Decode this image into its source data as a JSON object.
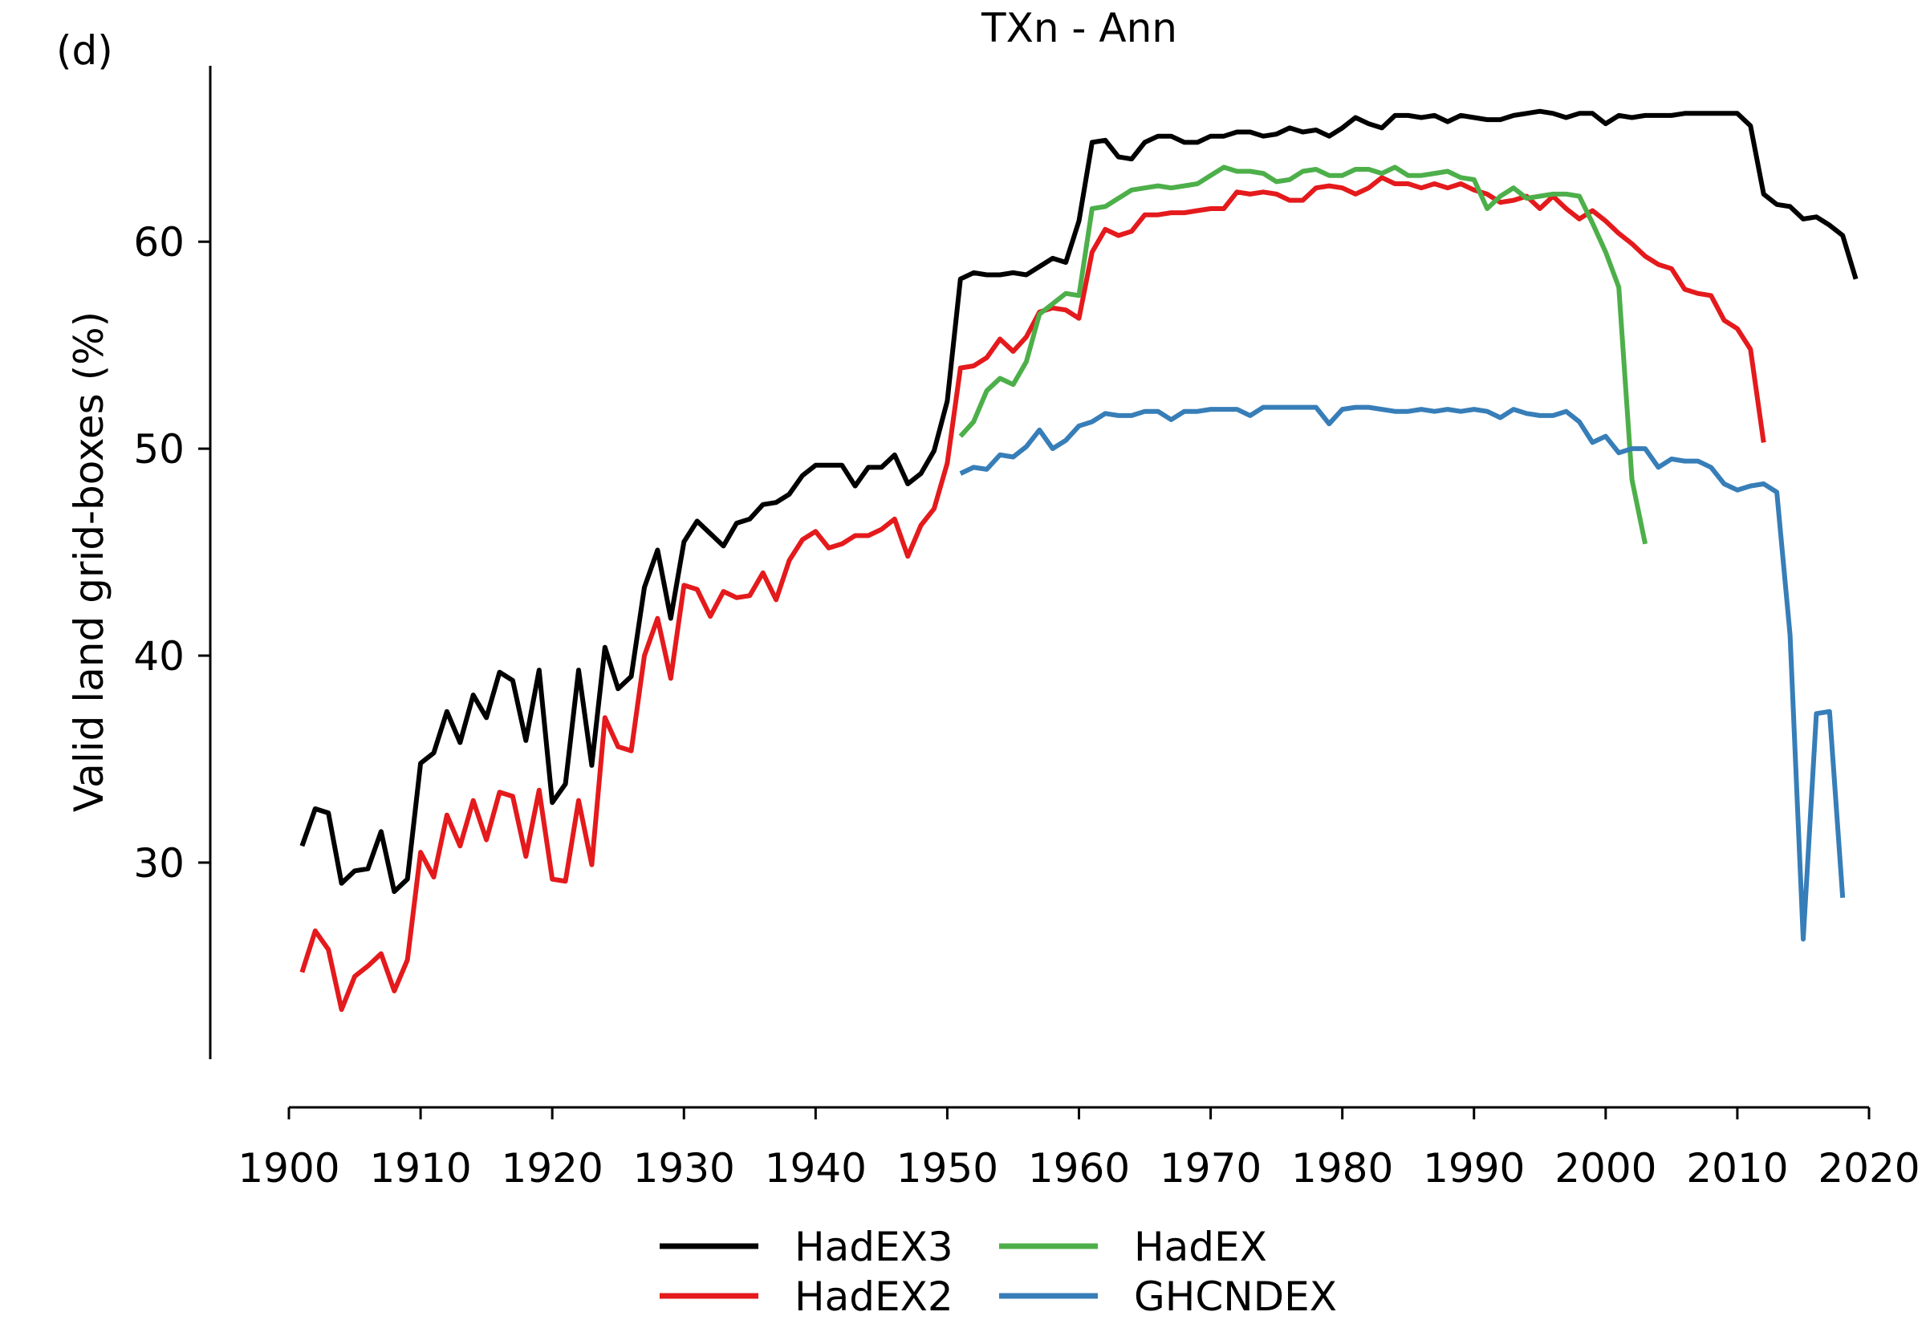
{
  "panel_label": "(d)",
  "chart_data": {
    "type": "line",
    "title": "TXn - Ann",
    "xlabel": "",
    "ylabel": "Valid land grid-boxes (%)",
    "xlim": [
      1900,
      2020
    ],
    "ylim": [
      20.5,
      68.5
    ],
    "xticks": [
      1900,
      1910,
      1920,
      1930,
      1940,
      1950,
      1960,
      1970,
      1980,
      1990,
      2000,
      2010,
      2020
    ],
    "yticks": [
      30,
      40,
      50,
      60
    ],
    "grid": false,
    "legend_position": "bottom-center",
    "series": [
      {
        "name": "HadEX3",
        "color": "#000000",
        "x_start": 1901,
        "values": [
          30.8,
          32.6,
          32.4,
          29.0,
          29.6,
          29.7,
          31.5,
          28.6,
          29.2,
          34.8,
          35.3,
          37.3,
          35.8,
          38.1,
          37.0,
          39.2,
          38.8,
          35.9,
          39.3,
          32.9,
          33.8,
          39.3,
          34.7,
          40.4,
          38.4,
          39.0,
          43.3,
          45.1,
          41.8,
          45.5,
          46.5,
          45.9,
          45.3,
          46.4,
          46.6,
          47.3,
          47.4,
          47.8,
          48.7,
          49.2,
          49.2,
          49.2,
          48.2,
          49.1,
          49.1,
          49.7,
          48.3,
          48.8,
          49.9,
          52.3,
          58.2,
          58.5,
          58.4,
          58.4,
          58.5,
          58.4,
          58.8,
          59.2,
          59.0,
          61.0,
          64.8,
          64.9,
          64.1,
          64.0,
          64.8,
          65.1,
          65.1,
          64.8,
          64.8,
          65.1,
          65.1,
          65.3,
          65.3,
          65.1,
          65.2,
          65.5,
          65.3,
          65.4,
          65.1,
          65.5,
          66.0,
          65.7,
          65.5,
          66.1,
          66.1,
          66.0,
          66.1,
          65.8,
          66.1,
          66.0,
          65.9,
          65.9,
          66.1,
          66.2,
          66.3,
          66.2,
          66.0,
          66.2,
          66.2,
          65.7,
          66.1,
          66.0,
          66.1,
          66.1,
          66.1,
          66.2,
          66.2,
          66.2,
          66.2,
          66.2,
          65.6,
          62.3,
          61.8,
          61.7,
          61.1,
          61.2,
          60.8,
          60.3,
          58.2
        ]
      },
      {
        "name": "HadEX2",
        "color": "#e41a1c",
        "x_start": 1901,
        "values": [
          24.7,
          26.7,
          25.8,
          22.9,
          24.5,
          25.0,
          25.6,
          23.8,
          25.3,
          30.5,
          29.3,
          32.3,
          30.8,
          33.0,
          31.1,
          33.4,
          33.2,
          30.3,
          33.5,
          29.2,
          29.1,
          33.0,
          29.9,
          37.0,
          35.6,
          35.4,
          40.0,
          41.8,
          38.9,
          43.4,
          43.2,
          41.9,
          43.1,
          42.8,
          42.9,
          44.0,
          42.7,
          44.6,
          45.6,
          46.0,
          45.2,
          45.4,
          45.8,
          45.8,
          46.1,
          46.6,
          44.8,
          46.3,
          47.1,
          49.3,
          53.9,
          54.0,
          54.4,
          55.3,
          54.7,
          55.4,
          56.6,
          56.8,
          56.7,
          56.3,
          59.5,
          60.6,
          60.3,
          60.5,
          61.3,
          61.3,
          61.4,
          61.4,
          61.5,
          61.6,
          61.6,
          62.4,
          62.3,
          62.4,
          62.3,
          62.0,
          62.0,
          62.6,
          62.7,
          62.6,
          62.3,
          62.6,
          63.1,
          62.8,
          62.8,
          62.6,
          62.8,
          62.6,
          62.8,
          62.5,
          62.3,
          61.9,
          62.0,
          62.2,
          61.6,
          62.2,
          61.6,
          61.1,
          61.5,
          61.0,
          60.4,
          59.9,
          59.3,
          58.9,
          58.7,
          57.7,
          57.5,
          57.4,
          56.2,
          55.8,
          54.8,
          50.3
        ]
      },
      {
        "name": "HadEX",
        "color": "#4daf4a",
        "x_start": 1951,
        "values": [
          50.6,
          51.3,
          52.8,
          53.4,
          53.1,
          54.2,
          56.5,
          57.0,
          57.5,
          57.4,
          61.6,
          61.7,
          62.1,
          62.5,
          62.6,
          62.7,
          62.6,
          62.7,
          62.8,
          63.2,
          63.6,
          63.4,
          63.4,
          63.3,
          62.9,
          63.0,
          63.4,
          63.5,
          63.2,
          63.2,
          63.5,
          63.5,
          63.3,
          63.6,
          63.2,
          63.2,
          63.3,
          63.4,
          63.1,
          63.0,
          61.6,
          62.2,
          62.6,
          62.1,
          62.2,
          62.3,
          62.3,
          62.2,
          60.9,
          59.5,
          57.8,
          48.5,
          45.4
        ]
      },
      {
        "name": "GHCNDEX",
        "color": "#377eb8",
        "x_start": 1951,
        "values": [
          48.8,
          49.1,
          49.0,
          49.7,
          49.6,
          50.1,
          50.9,
          50.0,
          50.4,
          51.1,
          51.3,
          51.7,
          51.6,
          51.6,
          51.8,
          51.8,
          51.4,
          51.8,
          51.8,
          51.9,
          51.9,
          51.9,
          51.6,
          52.0,
          52.0,
          52.0,
          52.0,
          52.0,
          51.2,
          51.9,
          52.0,
          52.0,
          51.9,
          51.8,
          51.8,
          51.9,
          51.8,
          51.9,
          51.8,
          51.9,
          51.8,
          51.5,
          51.9,
          51.7,
          51.6,
          51.6,
          51.8,
          51.3,
          50.3,
          50.6,
          49.8,
          50.0,
          50.0,
          49.1,
          49.5,
          49.4,
          49.4,
          49.1,
          48.3,
          48.0,
          48.2,
          48.3,
          47.9,
          41.0,
          26.3,
          37.2,
          37.3,
          28.3
        ]
      }
    ]
  }
}
